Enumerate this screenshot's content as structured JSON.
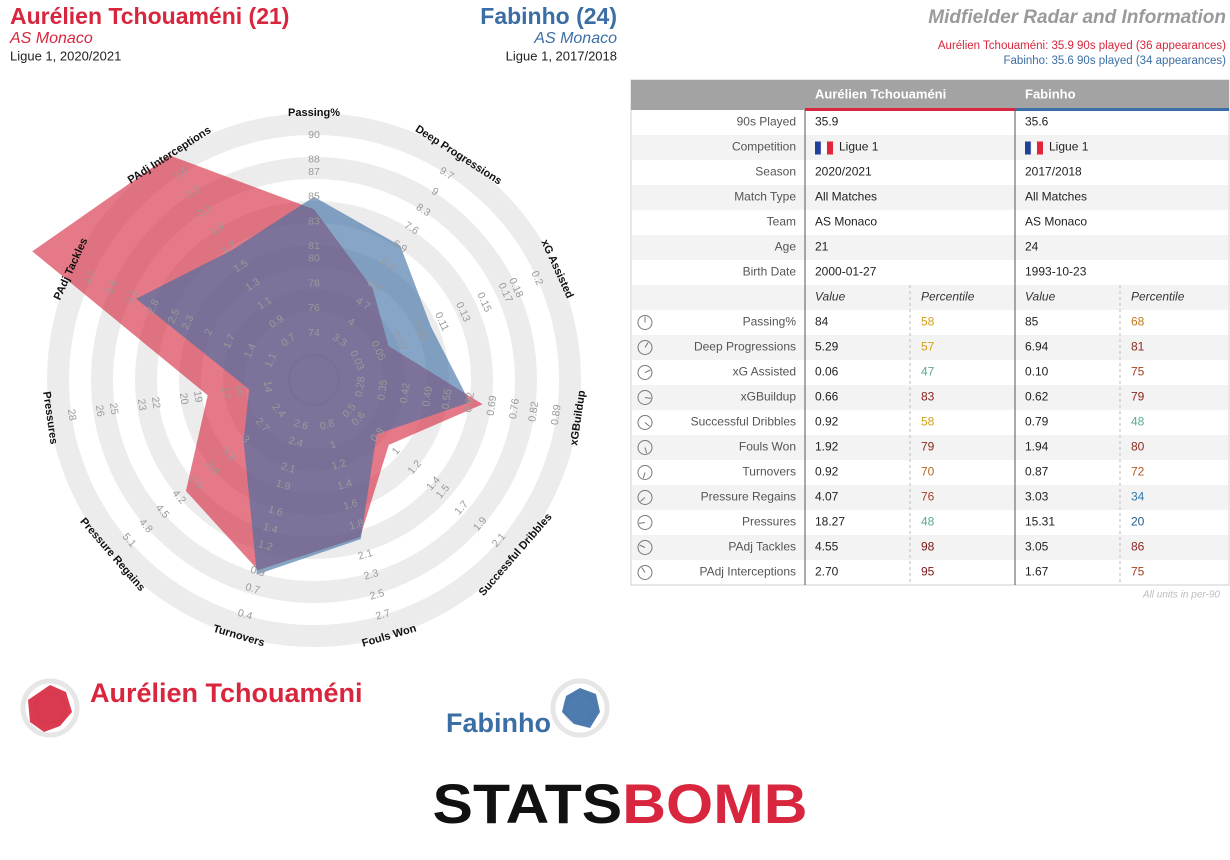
{
  "header": {
    "left": {
      "title": "Aurélien Tchouaméni (21)",
      "team": "AS Monaco",
      "season": "Ligue 1, 2020/2021"
    },
    "right": {
      "title": "Fabinho (24)",
      "team": "AS Monaco",
      "season": "Ligue 1, 2017/2018"
    },
    "info_title": "Midfielder Radar and Information",
    "info_lines": [
      "Aurélien Tchouaméni: 35.9 90s played (36 appearances)",
      "Fabinho: 35.6 90s played (34 appearances)"
    ]
  },
  "chart_data": {
    "type": "radar",
    "axes": [
      "Passing%",
      "Deep Progressions",
      "xG Assisted",
      "xGBuildup",
      "Successful Dribbles",
      "Fouls Won",
      "Turnovers",
      "Pressure Regains",
      "Pressures",
      "PAdj Tackles",
      "PAdj Interceptions"
    ],
    "axis_ticks": [
      [
        74,
        76,
        78,
        80,
        81,
        83,
        85,
        87,
        88,
        90
      ],
      [
        3.3,
        4.0,
        4.7,
        5.4,
        6.2,
        6.9,
        7.6,
        8.3,
        9.0,
        9.7
      ],
      [
        0.03,
        0.05,
        0.07,
        0.09,
        0.11,
        0.13,
        0.15,
        0.17,
        0.18,
        0.2
      ],
      [
        0.28,
        0.35,
        0.42,
        0.49,
        0.55,
        0.62,
        0.69,
        0.76,
        0.82,
        0.89
      ],
      [
        0.5,
        0.6,
        0.8,
        1.0,
        1.2,
        1.4,
        1.5,
        1.7,
        1.9,
        2.1
      ],
      [
        0.8,
        1.0,
        1.2,
        1.4,
        1.6,
        1.8,
        2.1,
        2.3,
        2.5,
        2.7
      ],
      [
        2.6,
        2.4,
        2.1,
        1.9,
        1.6,
        1.4,
        1.2,
        0.9,
        0.7,
        0.4
      ],
      [
        2.4,
        2.7,
        3.0,
        3.3,
        3.6,
        3.9,
        4.2,
        4.5,
        4.8,
        5.1
      ],
      [
        14,
        16,
        17,
        19,
        20,
        22,
        23,
        25,
        26,
        28
      ],
      [
        1.1,
        1.4,
        1.7,
        2.0,
        2.3,
        2.5,
        2.8,
        3.1,
        3.4,
        3.7
      ],
      [
        0.7,
        0.9,
        1.1,
        1.3,
        1.5,
        1.7,
        1.9,
        2.1,
        2.3,
        2.5
      ]
    ],
    "series": [
      {
        "name": "Aurélien Tchouaméni",
        "color": "#d7263d",
        "values": [
          84,
          5.29,
          0.06,
          0.66,
          0.92,
          1.92,
          0.92,
          4.07,
          18.27,
          4.55,
          2.7
        ]
      },
      {
        "name": "Fabinho",
        "color": "#3b6ea5",
        "values": [
          85,
          6.94,
          0.1,
          0.62,
          0.79,
          1.94,
          0.87,
          3.03,
          15.31,
          3.05,
          1.67
        ]
      }
    ]
  },
  "table": {
    "columns": [
      "Aurélien Tchouaméni",
      "Fabinho"
    ],
    "info_rows": [
      {
        "label": "90s Played",
        "values": [
          "35.9",
          "35.6"
        ]
      },
      {
        "label": "Competition",
        "values": [
          "Ligue 1",
          "Ligue 1"
        ]
      },
      {
        "label": "Season",
        "values": [
          "2020/2021",
          "2017/2018"
        ]
      },
      {
        "label": "Match Type",
        "values": [
          "All Matches",
          "All Matches"
        ]
      },
      {
        "label": "Team",
        "values": [
          "AS Monaco",
          "AS Monaco"
        ]
      },
      {
        "label": "Age",
        "values": [
          "21",
          "24"
        ]
      },
      {
        "label": "Birth Date",
        "values": [
          "2000-01-27",
          "1993-10-23"
        ]
      }
    ],
    "stat_header": [
      "Value",
      "Percentile"
    ],
    "stat_rows": [
      {
        "label": "Passing%",
        "values": [
          "84",
          "85"
        ],
        "percentiles": [
          58,
          68
        ],
        "percentile_colors": [
          "#d4a017",
          "#c47a1a"
        ]
      },
      {
        "label": "Deep Progressions",
        "values": [
          "5.29",
          "6.94"
        ],
        "percentiles": [
          57,
          81
        ],
        "percentile_colors": [
          "#d4a017",
          "#8b2a1e"
        ]
      },
      {
        "label": "xG Assisted",
        "values": [
          "0.06",
          "0.10"
        ],
        "percentiles": [
          47,
          75
        ],
        "percentile_colors": [
          "#5aaa8a",
          "#a0401e"
        ]
      },
      {
        "label": "xGBuildup",
        "values": [
          "0.66",
          "0.62"
        ],
        "percentiles": [
          83,
          79
        ],
        "percentile_colors": [
          "#8b1e1e",
          "#8b2a1e"
        ]
      },
      {
        "label": "Successful Dribbles",
        "values": [
          "0.92",
          "0.79"
        ],
        "percentiles": [
          58,
          48
        ],
        "percentile_colors": [
          "#d4a017",
          "#5aaa8a"
        ]
      },
      {
        "label": "Fouls Won",
        "values": [
          "1.92",
          "1.94"
        ],
        "percentiles": [
          79,
          80
        ],
        "percentile_colors": [
          "#8b2a1e",
          "#8b2a1e"
        ]
      },
      {
        "label": "Turnovers",
        "values": [
          "0.92",
          "0.87"
        ],
        "percentiles": [
          70,
          72
        ],
        "percentile_colors": [
          "#b5651d",
          "#b05a1e"
        ]
      },
      {
        "label": "Pressure Regains",
        "values": [
          "4.07",
          "3.03"
        ],
        "percentiles": [
          76,
          34
        ],
        "percentile_colors": [
          "#a3402a",
          "#2e78a8"
        ]
      },
      {
        "label": "Pressures",
        "values": [
          "18.27",
          "15.31"
        ],
        "percentiles": [
          48,
          20
        ],
        "percentile_colors": [
          "#5aaa8a",
          "#1f5a8a"
        ]
      },
      {
        "label": "PAdj Tackles",
        "values": [
          "4.55",
          "3.05"
        ],
        "percentiles": [
          98,
          86
        ],
        "percentile_colors": [
          "#7a1414",
          "#8b1e1e"
        ]
      },
      {
        "label": "PAdj Interceptions",
        "values": [
          "2.70",
          "1.67"
        ],
        "percentiles": [
          95,
          75
        ],
        "percentile_colors": [
          "#7e1616",
          "#a0401e"
        ]
      }
    ],
    "note": "All units in per-90"
  },
  "logo": {
    "left": "STATS",
    "right": "BOMB"
  }
}
